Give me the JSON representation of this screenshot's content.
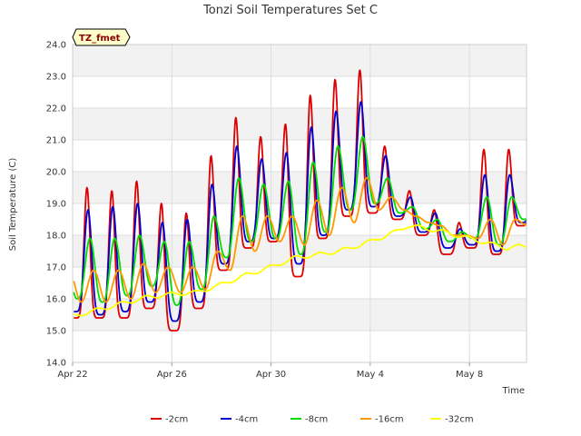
{
  "chart_data": {
    "type": "line",
    "title": "Tonzi Soil Temperatures Set C",
    "xlabel": "Time",
    "ylabel": "Soil Temperature (C)",
    "badge": "TZ_fmet",
    "ylim": [
      14.0,
      24.0
    ],
    "yticks": [
      "14.0",
      "15.0",
      "16.0",
      "17.0",
      "18.0",
      "19.0",
      "20.0",
      "21.0",
      "22.0",
      "23.0",
      "24.0"
    ],
    "xlim": [
      0,
      18.3
    ],
    "xticks": [
      {
        "label": "Apr 22",
        "day": 0
      },
      {
        "label": "Apr 26",
        "day": 4
      },
      {
        "label": "Apr 30",
        "day": 8
      },
      {
        "label": "May 4",
        "day": 12
      },
      {
        "label": "May 8",
        "day": 16
      }
    ],
    "grid": true,
    "legend_position": "bottom",
    "series": [
      {
        "name": "-2cm",
        "color": "#dd0000",
        "peak_phase": 0.58,
        "sharp": 3.5,
        "mins": [
          15.4,
          15.4,
          15.4,
          15.7,
          15.0,
          15.7,
          16.9,
          17.6,
          17.8,
          16.7,
          17.9,
          18.6,
          18.7,
          18.5,
          18.0,
          17.4,
          17.6,
          17.4,
          18.3
        ],
        "maxs": [
          19.5,
          19.4,
          19.7,
          19.0,
          18.7,
          20.5,
          21.7,
          21.1,
          21.5,
          22.4,
          22.9,
          23.2,
          20.8,
          19.4,
          18.8,
          18.4,
          20.7,
          20.7
        ]
      },
      {
        "name": "-4cm",
        "color": "#0000cc",
        "peak_phase": 0.62,
        "sharp": 2.2,
        "mins": [
          15.6,
          15.5,
          15.6,
          15.9,
          15.3,
          15.9,
          17.1,
          17.8,
          17.9,
          17.1,
          18.0,
          18.8,
          18.9,
          18.6,
          18.1,
          17.6,
          17.7,
          17.5,
          18.4
        ],
        "maxs": [
          18.8,
          18.9,
          19.0,
          18.4,
          18.5,
          19.6,
          20.8,
          20.4,
          20.6,
          21.4,
          21.9,
          22.2,
          20.5,
          19.2,
          18.7,
          18.2,
          19.9,
          19.9
        ]
      },
      {
        "name": "-8cm",
        "color": "#00dd00",
        "peak_phase": 0.7,
        "sharp": 1.4,
        "mins": [
          16.0,
          15.9,
          16.1,
          16.4,
          15.8,
          16.3,
          17.3,
          17.8,
          17.9,
          17.4,
          18.1,
          18.8,
          19.0,
          18.7,
          18.2,
          17.8,
          17.9,
          17.7,
          18.5
        ],
        "maxs": [
          17.9,
          17.9,
          18.0,
          17.8,
          17.8,
          18.6,
          19.8,
          19.6,
          19.7,
          20.3,
          20.8,
          21.1,
          19.8,
          18.9,
          18.5,
          18.1,
          19.2,
          19.2
        ]
      },
      {
        "name": "-16cm",
        "color": "#ff9900",
        "peak_phase": 0.85,
        "sharp": 1.0,
        "mins": [
          15.9,
          15.9,
          16.0,
          16.2,
          16.2,
          16.3,
          16.9,
          17.5,
          17.8,
          17.7,
          18.0,
          18.4,
          18.8,
          18.8,
          18.4,
          18.0,
          17.9,
          17.7,
          18.3
        ],
        "maxs": [
          16.9,
          16.9,
          17.1,
          17.0,
          17.0,
          17.5,
          18.6,
          18.6,
          18.6,
          19.1,
          19.5,
          19.8,
          19.2,
          18.6,
          18.3,
          18.0,
          18.5,
          18.5
        ]
      },
      {
        "name": "-32cm",
        "color": "#ffff00",
        "peak_phase": 0.95,
        "sharp": 1.0,
        "amp": 0.06,
        "trend": [
          [
            0.0,
            15.45
          ],
          [
            1.0,
            15.65
          ],
          [
            2.0,
            15.85
          ],
          [
            3.0,
            16.05
          ],
          [
            4.0,
            16.15
          ],
          [
            5.0,
            16.2
          ],
          [
            6.0,
            16.45
          ],
          [
            7.0,
            16.75
          ],
          [
            8.0,
            17.0
          ],
          [
            9.0,
            17.3
          ],
          [
            10.0,
            17.4
          ],
          [
            11.0,
            17.55
          ],
          [
            12.0,
            17.8
          ],
          [
            13.0,
            18.1
          ],
          [
            13.5,
            18.3
          ],
          [
            14.0,
            18.25
          ],
          [
            15.0,
            18.1
          ],
          [
            16.0,
            17.9
          ],
          [
            17.0,
            17.7
          ],
          [
            17.5,
            17.6
          ],
          [
            18.0,
            17.65
          ]
        ]
      }
    ]
  }
}
